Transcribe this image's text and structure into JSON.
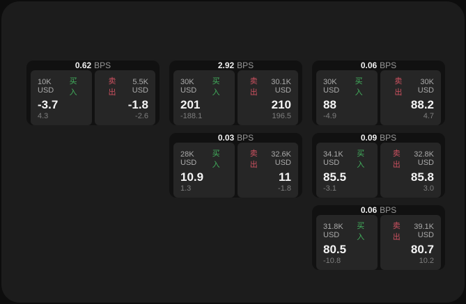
{
  "colors": {
    "page_bg": "#0d0d0d",
    "panel_bg": "#1c1c1c",
    "card_bg": "#111111",
    "tile_bg": "#262626",
    "buy_green": "#42b05d",
    "sell_red": "#cd5160"
  },
  "labels": {
    "bps": "BPS",
    "buy": "买入",
    "sell": "卖出"
  },
  "cards": [
    {
      "bps": "0.62",
      "buy": {
        "amount": "10K USD",
        "price": "-3.7",
        "delta": "4.3"
      },
      "sell": {
        "amount": "5.5K USD",
        "price": "-1.8",
        "delta": "-2.6"
      }
    },
    {
      "bps": "2.92",
      "buy": {
        "amount": "30K USD",
        "price": "201",
        "delta": "-188.1"
      },
      "sell": {
        "amount": "30.1K USD",
        "price": "210",
        "delta": "196.5"
      }
    },
    {
      "bps": "0.06",
      "buy": {
        "amount": "30K USD",
        "price": "88",
        "delta": "-4.9"
      },
      "sell": {
        "amount": "30K USD",
        "price": "88.2",
        "delta": "4.7"
      }
    },
    {
      "bps": "0.03",
      "buy": {
        "amount": "28K USD",
        "price": "10.9",
        "delta": "1.3"
      },
      "sell": {
        "amount": "32.6K USD",
        "price": "11",
        "delta": "-1.8"
      }
    },
    {
      "bps": "0.09",
      "buy": {
        "amount": "34.1K USD",
        "price": "85.5",
        "delta": "-3.1"
      },
      "sell": {
        "amount": "32.8K USD",
        "price": "85.8",
        "delta": "3.0"
      }
    },
    {
      "bps": "0.06",
      "buy": {
        "amount": "31.8K USD",
        "price": "80.5",
        "delta": "-10.8"
      },
      "sell": {
        "amount": "39.1K USD",
        "price": "80.7",
        "delta": "10.2"
      }
    }
  ]
}
